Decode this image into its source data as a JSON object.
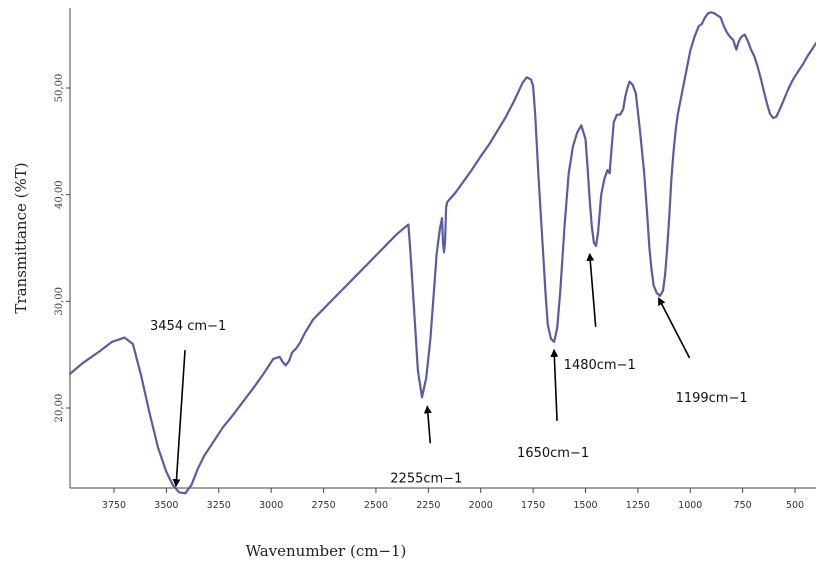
{
  "chart_data": {
    "type": "line",
    "xlabel": "Wavenumber (cm−1)",
    "ylabel": "Transmittance (%T)",
    "x_reversed": true,
    "xlim": [
      3960,
      400
    ],
    "ylim": [
      12.5,
      57.5
    ],
    "x_ticks": [
      3750,
      3500,
      3250,
      3000,
      2750,
      2500,
      2250,
      2000,
      1750,
      1500,
      1250,
      1000,
      750,
      500
    ],
    "y_ticks": [
      {
        "value": 20,
        "label": "20,00"
      },
      {
        "value": 30,
        "label": "30,00"
      },
      {
        "value": 40,
        "label": "40,00"
      },
      {
        "value": 50,
        "label": "50,00"
      }
    ],
    "grid": false,
    "line_color": "#5b5ba3",
    "series": [
      {
        "x": [
          3960,
          3900,
          3820,
          3760,
          3700,
          3660,
          3620,
          3580,
          3540,
          3500,
          3470,
          3440,
          3410,
          3380,
          3350,
          3320,
          3280,
          3230,
          3180,
          3130,
          3080,
          3030,
          2990,
          2960,
          2945,
          2930,
          2915,
          2900,
          2880,
          2860,
          2840,
          2800,
          2750,
          2700,
          2650,
          2600,
          2550,
          2500,
          2450,
          2400,
          2370,
          2345,
          2335,
          2320,
          2300,
          2280,
          2260,
          2240,
          2220,
          2210,
          2195,
          2185,
          2180,
          2175,
          2170,
          2165,
          2160,
          2120,
          2080,
          2040,
          2000,
          1960,
          1920,
          1880,
          1840,
          1800,
          1780,
          1760,
          1750,
          1740,
          1725,
          1705,
          1690,
          1680,
          1665,
          1650,
          1635,
          1620,
          1600,
          1580,
          1560,
          1540,
          1520,
          1500,
          1490,
          1480,
          1470,
          1460,
          1450,
          1440,
          1425,
          1410,
          1395,
          1385,
          1375,
          1365,
          1350,
          1335,
          1320,
          1310,
          1300,
          1290,
          1275,
          1260,
          1240,
          1220,
          1205,
          1195,
          1185,
          1175,
          1160,
          1145,
          1130,
          1120,
          1110,
          1100,
          1090,
          1080,
          1070,
          1060,
          1040,
          1020,
          1000,
          980,
          960,
          945,
          930,
          915,
          900,
          885,
          870,
          855,
          840,
          825,
          810,
          795,
          780,
          770,
          760,
          750,
          740,
          725,
          710,
          695,
          680,
          665,
          650,
          635,
          620,
          605,
          590,
          575,
          560,
          545,
          530,
          515,
          500,
          480,
          460,
          440,
          420,
          400
        ],
        "y": [
          23.2,
          24.2,
          25.3,
          26.2,
          26.6,
          26.0,
          23.0,
          19.5,
          16.3,
          14.0,
          12.8,
          12.1,
          12.0,
          12.8,
          14.3,
          15.5,
          16.7,
          18.2,
          19.4,
          20.7,
          22.0,
          23.4,
          24.6,
          24.8,
          24.3,
          24.0,
          24.4,
          25.2,
          25.6,
          26.2,
          27.0,
          28.3,
          29.3,
          30.3,
          31.3,
          32.3,
          33.3,
          34.3,
          35.3,
          36.3,
          36.8,
          37.2,
          34.5,
          29.8,
          23.5,
          21.0,
          22.8,
          26.5,
          31.8,
          34.5,
          36.8,
          37.8,
          35.5,
          34.6,
          35.7,
          38.8,
          39.3,
          40.2,
          41.3,
          42.4,
          43.6,
          44.7,
          46.0,
          47.3,
          48.8,
          50.5,
          51.0,
          50.8,
          50.2,
          47.5,
          42.0,
          35.5,
          30.5,
          27.8,
          26.5,
          26.2,
          27.5,
          31.0,
          37.0,
          42.0,
          44.5,
          45.8,
          46.5,
          45.2,
          42.5,
          39.5,
          37.0,
          35.5,
          35.2,
          36.5,
          40.0,
          41.5,
          42.3,
          42.0,
          44.5,
          46.8,
          47.5,
          47.5,
          48.0,
          49.2,
          50.0,
          50.6,
          50.3,
          49.5,
          46.0,
          42.0,
          38.0,
          35.0,
          33.0,
          31.5,
          30.8,
          30.5,
          31.0,
          32.5,
          35.0,
          38.0,
          41.5,
          44.0,
          46.0,
          47.5,
          49.5,
          51.5,
          53.5,
          54.8,
          55.8,
          56.0,
          56.6,
          57.0,
          57.1,
          57.0,
          56.8,
          56.6,
          55.8,
          55.2,
          54.8,
          54.5,
          53.6,
          54.3,
          54.7,
          54.9,
          55.0,
          54.4,
          53.6,
          53.0,
          52.1,
          51.0,
          49.8,
          48.6,
          47.6,
          47.2,
          47.3,
          47.9,
          48.6,
          49.3,
          50.0,
          50.6,
          51.1,
          51.7,
          52.3,
          53.0,
          53.6,
          54.2
        ]
      }
    ],
    "annotations": [
      {
        "text": "3454 cm−1",
        "x": 3454,
        "y": 12.3
      },
      {
        "text": "2255cm−1",
        "x": 2255,
        "y": 21.0
      },
      {
        "text": "1650cm−1",
        "x": 1650,
        "y": 26.2
      },
      {
        "text": "1480cm−1",
        "x": 1480,
        "y": 35.2
      },
      {
        "text": "1199cm−1",
        "x": 1199,
        "y": 30.5
      }
    ]
  }
}
